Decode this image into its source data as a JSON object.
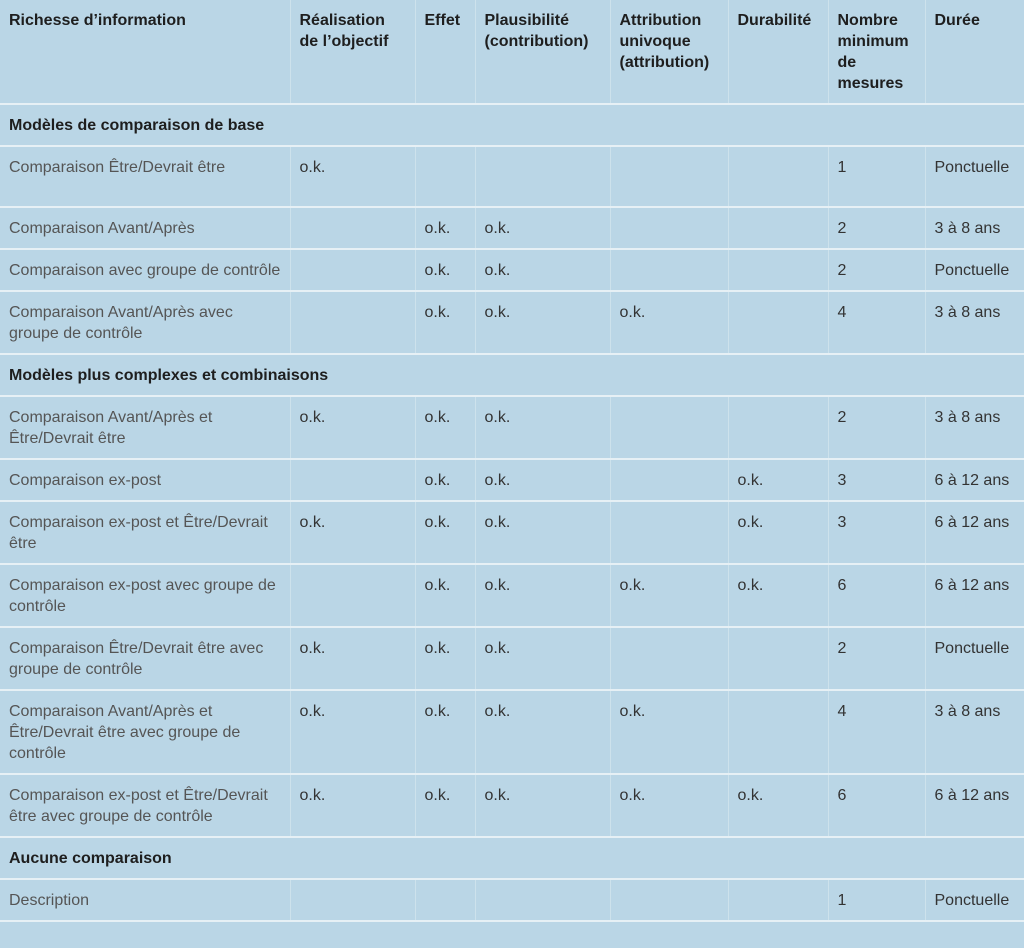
{
  "table": {
    "header": [
      "Richesse d’information",
      "Réalisation de l’objectif",
      "Effet",
      "Plausibilité (contribution)",
      "Attribution univoque (attribution)",
      "Durabilité",
      "Nombre minimum de mesures",
      "Durée"
    ],
    "sections": [
      {
        "title": "Modèles de comparaison de base",
        "rows": [
          [
            "Comparaison Être/Devrait être",
            "o.k.",
            null,
            null,
            null,
            null,
            "1",
            "Ponctuelle"
          ],
          [
            "Comparaison Avant/Après",
            null,
            "o.k.",
            "o.k.",
            null,
            null,
            "2",
            "3 à 8 ans"
          ],
          [
            "Comparaison avec groupe de contrôle",
            null,
            "o.k.",
            "o.k.",
            null,
            null,
            "2",
            "Ponctuelle"
          ],
          [
            "Comparaison Avant/Après avec groupe de contrôle",
            null,
            "o.k.",
            "o.k.",
            "o.k.",
            null,
            "4",
            "3 à 8 ans"
          ]
        ]
      },
      {
        "title": "Modèles plus complexes et combinaisons",
        "rows": [
          [
            "Comparaison Avant/Après et Être/Devrait être",
            "o.k.",
            "o.k.",
            "o.k.",
            null,
            null,
            "2",
            "3 à 8 ans"
          ],
          [
            "Comparaison ex-post",
            null,
            "o.k.",
            "o.k.",
            null,
            "o.k.",
            "3",
            "6 à 12 ans"
          ],
          [
            "Comparaison ex-post et Être/Devrait être",
            "o.k.",
            "o.k.",
            "o.k.",
            null,
            "o.k.",
            "3",
            "6 à 12 ans"
          ],
          [
            "Comparaison ex-post avec groupe de contrôle",
            null,
            "o.k.",
            "o.k.",
            "o.k.",
            "o.k.",
            "6",
            "6 à 12 ans"
          ],
          [
            "Comparaison Être/Devrait être avec groupe de contrôle",
            "o.k.",
            "o.k.",
            "o.k.",
            null,
            null,
            "2",
            "Ponctuelle"
          ],
          [
            "Comparaison Avant/Après et Être/Devrait être avec groupe de contrôle",
            "o.k.",
            "o.k.",
            "o.k.",
            "o.k.",
            null,
            "4",
            "3 à 8 ans"
          ],
          [
            "Comparaison ex-post et Être/Devrait être avec groupe de contrôle",
            "o.k.",
            "o.k.",
            "o.k.",
            "o.k.",
            "o.k.",
            "6",
            "6 à 12 ans"
          ]
        ]
      },
      {
        "title": "Aucune comparaison",
        "rows": [
          [
            "Description",
            null,
            null,
            null,
            null,
            null,
            "1",
            "Ponctuelle"
          ]
        ]
      }
    ]
  }
}
